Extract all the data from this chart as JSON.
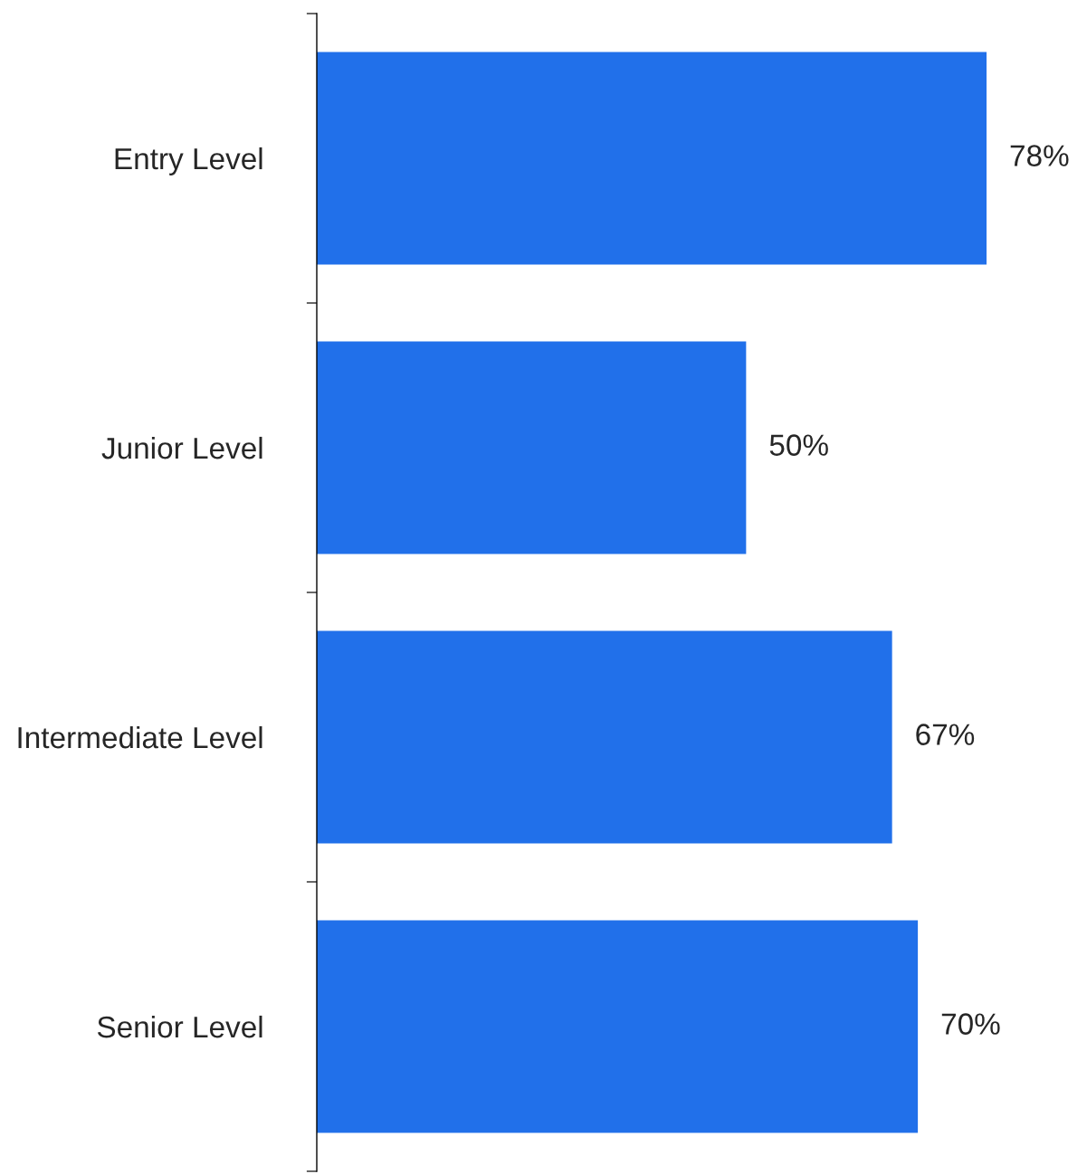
{
  "chart_data": {
    "type": "bar",
    "orientation": "horizontal",
    "categories": [
      "Entry Level",
      "Junior Level",
      "Intermediate Level",
      "Senior Level"
    ],
    "values": [
      78,
      50,
      67,
      70
    ],
    "value_labels": [
      "78%",
      "50%",
      "67%",
      "70%"
    ],
    "color": "#2170ea",
    "grid": false,
    "legend": false,
    "tick_labels": "y"
  }
}
